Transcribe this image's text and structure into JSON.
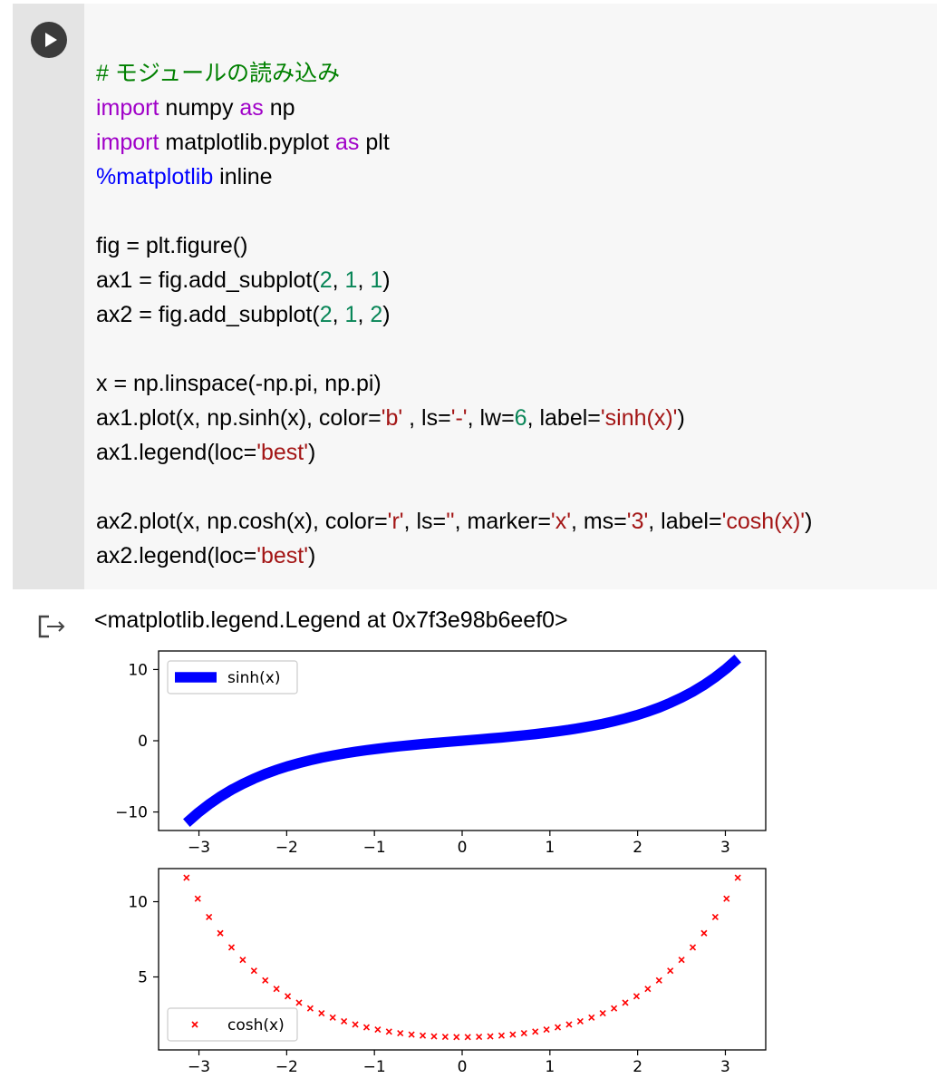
{
  "cell": {
    "run_icon": "play-icon",
    "code_lines": [
      [
        {
          "t": "# モジュールの読み込み",
          "c": "cm"
        }
      ],
      [
        {
          "t": "import",
          "c": "kw"
        },
        {
          "t": " numpy "
        },
        {
          "t": "as",
          "c": "kw"
        },
        {
          "t": " np"
        }
      ],
      [
        {
          "t": "import",
          "c": "kw"
        },
        {
          "t": " matplotlib.pyplot "
        },
        {
          "t": "as",
          "c": "kw"
        },
        {
          "t": " plt"
        }
      ],
      [
        {
          "t": "%matplotlib",
          "c": "mg"
        },
        {
          "t": " inline"
        }
      ],
      [],
      [
        {
          "t": "fig = plt.figure()"
        }
      ],
      [
        {
          "t": "ax1 = fig.add_subplot("
        },
        {
          "t": "2",
          "c": "nm"
        },
        {
          "t": ", "
        },
        {
          "t": "1",
          "c": "nm"
        },
        {
          "t": ", "
        },
        {
          "t": "1",
          "c": "nm"
        },
        {
          "t": ")"
        }
      ],
      [
        {
          "t": "ax2 = fig.add_subplot("
        },
        {
          "t": "2",
          "c": "nm"
        },
        {
          "t": ", "
        },
        {
          "t": "1",
          "c": "nm"
        },
        {
          "t": ", "
        },
        {
          "t": "2",
          "c": "nm"
        },
        {
          "t": ")"
        }
      ],
      [],
      [
        {
          "t": "x = np.linspace(-np.pi, np.pi)"
        }
      ],
      [
        {
          "t": "ax1.plot(x, np.sinh(x), color="
        },
        {
          "t": "'b'",
          "c": "st"
        },
        {
          "t": " , ls="
        },
        {
          "t": "'-'",
          "c": "st"
        },
        {
          "t": ", lw="
        },
        {
          "t": "6",
          "c": "nm"
        },
        {
          "t": ", label="
        },
        {
          "t": "'sinh(x)'",
          "c": "st"
        },
        {
          "t": ")"
        }
      ],
      [
        {
          "t": "ax1.legend(loc="
        },
        {
          "t": "'best'",
          "c": "st"
        },
        {
          "t": ")"
        }
      ],
      [],
      [
        {
          "t": "ax2.plot(x, np.cosh(x), color="
        },
        {
          "t": "'r'",
          "c": "st"
        },
        {
          "t": ", ls="
        },
        {
          "t": "''",
          "c": "st"
        },
        {
          "t": ", marker="
        },
        {
          "t": "'x'",
          "c": "st"
        },
        {
          "t": ", ms="
        },
        {
          "t": "'3'",
          "c": "st"
        },
        {
          "t": ", label="
        },
        {
          "t": "'cosh(x)'",
          "c": "st"
        },
        {
          "t": ")"
        }
      ],
      [
        {
          "t": "ax2.legend(loc="
        },
        {
          "t": "'best'",
          "c": "st"
        },
        {
          "t": ")"
        }
      ]
    ]
  },
  "output": {
    "icon": "output-arrow-icon",
    "text": "<matplotlib.legend.Legend at 0x7f3e98b6eef0>"
  },
  "chart_data": [
    {
      "type": "line",
      "function": "sinh",
      "x_range": [
        -3.14159,
        3.14159
      ],
      "num_points": 50,
      "series": [
        {
          "name": "sinh(x)",
          "color": "#0000ff",
          "linestyle": "-",
          "linewidth": 6
        }
      ],
      "xlim": [
        -3.46,
        3.46
      ],
      "ylim": [
        -12.6,
        12.6
      ],
      "xticks": [
        -3,
        -2,
        -1,
        0,
        1,
        2,
        3
      ],
      "xtick_labels": [
        "−3",
        "−2",
        "−1",
        "0",
        "1",
        "2",
        "3"
      ],
      "yticks": [
        -10,
        0,
        10
      ],
      "ytick_labels": [
        "−10",
        "0",
        "10"
      ],
      "legend": {
        "entries": [
          "sinh(x)"
        ],
        "loc": "upper-left"
      },
      "grid": false
    },
    {
      "type": "scatter",
      "function": "cosh",
      "x_range": [
        -3.14159,
        3.14159
      ],
      "num_points": 50,
      "series": [
        {
          "name": "cosh(x)",
          "color": "#ff0000",
          "marker": "x",
          "markersize": 3
        }
      ],
      "xlim": [
        -3.46,
        3.46
      ],
      "ylim": [
        0.15,
        12.2
      ],
      "xticks": [
        -3,
        -2,
        -1,
        0,
        1,
        2,
        3
      ],
      "xtick_labels": [
        "−3",
        "−2",
        "−1",
        "0",
        "1",
        "2",
        "3"
      ],
      "yticks": [
        5,
        10
      ],
      "ytick_labels": [
        "5",
        "10"
      ],
      "legend": {
        "entries": [
          "cosh(x)"
        ],
        "loc": "lower-left"
      },
      "grid": false
    }
  ]
}
